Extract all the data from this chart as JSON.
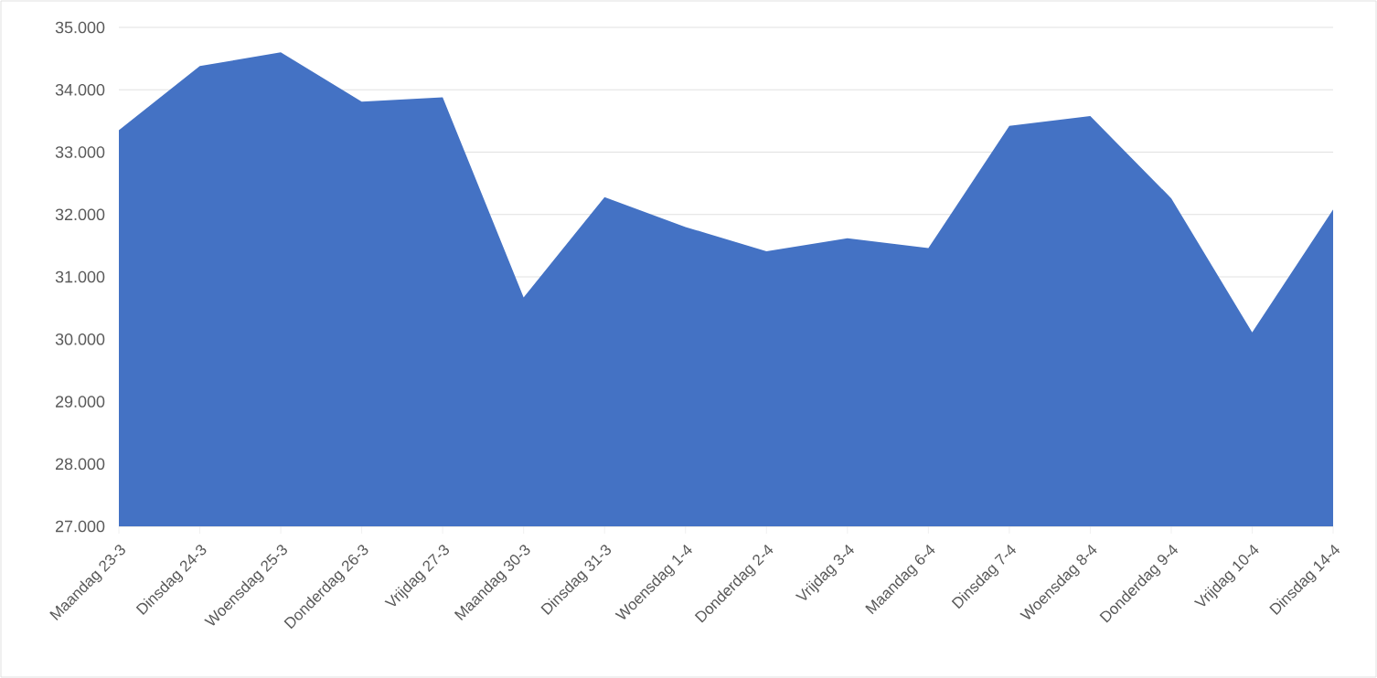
{
  "chart_data": {
    "type": "area",
    "categories": [
      "Maandag 23-3",
      "Dinsdag 24-3",
      "Woensdag 25-3",
      "Donderdag 26-3",
      "Vrijdag 27-3",
      "Maandag 30-3",
      "Dinsdag 31-3",
      "Woensdag 1-4",
      "Donderdag 2-4",
      "Vrijdag 3-4",
      "Maandag 6-4",
      "Dinsdag 7-4",
      "Woensdag 8-4",
      "Donderdag 9-4",
      "Vrijdag 10-4",
      "Dinsdag 14-4"
    ],
    "values": [
      33350,
      34380,
      34600,
      33810,
      33880,
      30670,
      32280,
      31800,
      31410,
      31620,
      31460,
      33420,
      33580,
      32260,
      30110,
      32080
    ],
    "color": "#4472c4",
    "ylim": [
      27000,
      35000
    ],
    "yticks": [
      {
        "value": 27000,
        "label": "27.000"
      },
      {
        "value": 28000,
        "label": "28.000"
      },
      {
        "value": 29000,
        "label": "29.000"
      },
      {
        "value": 30000,
        "label": "30.000"
      },
      {
        "value": 31000,
        "label": "31.000"
      },
      {
        "value": 32000,
        "label": "32.000"
      },
      {
        "value": 33000,
        "label": "33.000"
      },
      {
        "value": 34000,
        "label": "34.000"
      },
      {
        "value": 35000,
        "label": "35.000"
      }
    ],
    "grid": "y"
  }
}
